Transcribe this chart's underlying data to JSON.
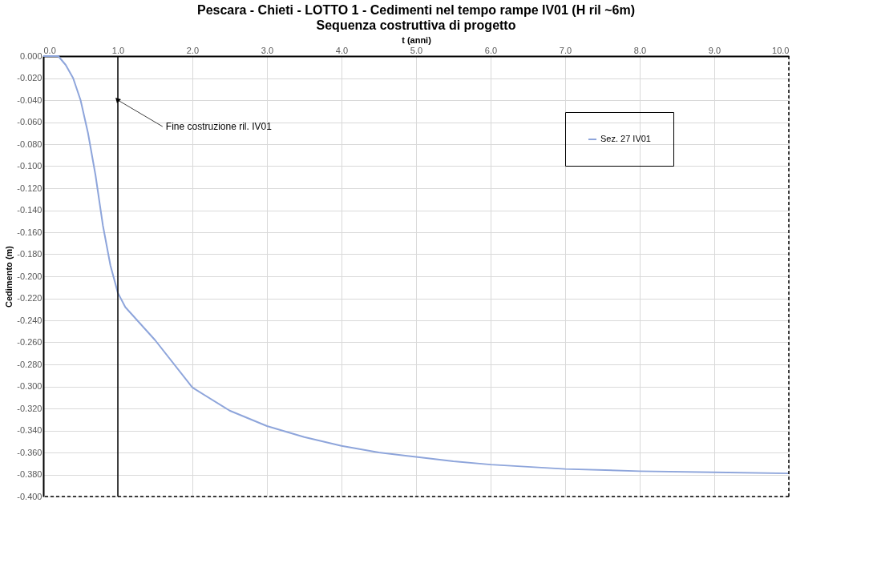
{
  "chart_data": {
    "type": "line",
    "title": "Pescara - Chieti - LOTTO  1 - Cedimenti nel tempo rampe IV01 (H ril ~6m)",
    "subtitle": "Sequenza costruttiva di progetto",
    "xlabel": "t (anni)",
    "ylabel": "Cedimento (m)",
    "x": [
      0,
      0.2,
      0.3,
      0.4,
      0.5,
      0.6,
      0.7,
      0.8,
      0.9,
      1.0,
      1.1,
      1.5,
      2.0,
      2.5,
      3.0,
      3.5,
      4.0,
      4.5,
      5.0,
      5.5,
      6.0,
      6.5,
      7.0,
      8.0,
      9.0,
      10.0
    ],
    "series": [
      {
        "name": "Sez. 27 IV01",
        "color": "#8ea5db",
        "values": [
          0,
          0,
          -0.008,
          -0.02,
          -0.04,
          -0.07,
          -0.108,
          -0.154,
          -0.19,
          -0.215,
          -0.228,
          -0.258,
          -0.301,
          -0.322,
          -0.336,
          -0.346,
          -0.354,
          -0.36,
          -0.364,
          -0.368,
          -0.371,
          -0.373,
          -0.375,
          -0.377,
          -0.378,
          -0.379
        ]
      }
    ],
    "xlim": [
      0,
      10
    ],
    "xticks": [
      {
        "value": 0,
        "label": "0.0"
      },
      {
        "value": 1,
        "label": "1.0"
      },
      {
        "value": 2,
        "label": "2.0"
      },
      {
        "value": 3,
        "label": "3.0"
      },
      {
        "value": 4,
        "label": "4.0"
      },
      {
        "value": 5,
        "label": "5.0"
      },
      {
        "value": 6,
        "label": "6.0"
      },
      {
        "value": 7,
        "label": "7.0"
      },
      {
        "value": 8,
        "label": "8.0"
      },
      {
        "value": 9,
        "label": "9.0"
      },
      {
        "value": 10,
        "label": "10.0"
      }
    ],
    "ylim": [
      -0.4,
      0
    ],
    "yticks": [
      {
        "value": 0,
        "label": "0.000"
      },
      {
        "value": -0.02,
        "label": "-0.020"
      },
      {
        "value": -0.04,
        "label": "-0.040"
      },
      {
        "value": -0.06,
        "label": "-0.060"
      },
      {
        "value": -0.08,
        "label": "-0.080"
      },
      {
        "value": -0.1,
        "label": "-0.100"
      },
      {
        "value": -0.12,
        "label": "-0.120"
      },
      {
        "value": -0.14,
        "label": "-0.140"
      },
      {
        "value": -0.16,
        "label": "-0.160"
      },
      {
        "value": -0.18,
        "label": "-0.180"
      },
      {
        "value": -0.2,
        "label": "-0.200"
      },
      {
        "value": -0.22,
        "label": "-0.220"
      },
      {
        "value": -0.24,
        "label": "-0.240"
      },
      {
        "value": -0.26,
        "label": "-0.260"
      },
      {
        "value": -0.28,
        "label": "-0.280"
      },
      {
        "value": -0.3,
        "label": "-0.300"
      },
      {
        "value": -0.32,
        "label": "-0.320"
      },
      {
        "value": -0.34,
        "label": "-0.340"
      },
      {
        "value": -0.36,
        "label": "-0.360"
      },
      {
        "value": -0.38,
        "label": "-0.380"
      },
      {
        "value": -0.4,
        "label": "-0.400"
      }
    ],
    "ref_lines": [
      {
        "axis": "x",
        "value": 1,
        "color": "#000000",
        "line_style": "solid"
      },
      {
        "axis": "x",
        "value": 10,
        "color": "#000000",
        "line_style": "dashed"
      },
      {
        "axis": "y",
        "value": -0.4,
        "color": "#000000",
        "line_style": "dashed"
      }
    ],
    "annotations": [
      {
        "text": "Fine costruzione ril. IV01",
        "x": 1,
        "y": -0.04
      }
    ],
    "grid": true,
    "legend": "top right",
    "marker": "none",
    "line_style": "solid"
  }
}
